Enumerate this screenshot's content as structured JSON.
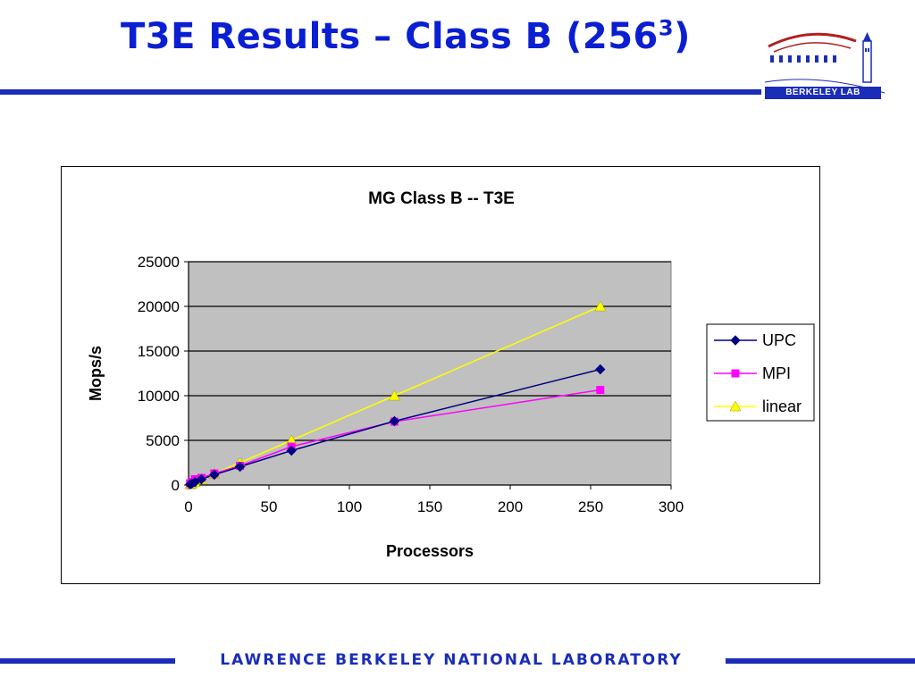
{
  "slide": {
    "title_main": "T3E Results – Class B (256",
    "title_sup": "3",
    "title_close": ")",
    "logo_text": "BERKELEY LAB",
    "footer": "LAWRENCE BERKELEY NATIONAL LABORATORY",
    "colors": {
      "title": "#0a1ed2",
      "rule": "#1a2db8"
    }
  },
  "chart_data": {
    "type": "scatter",
    "title": "MG Class B -- T3E",
    "xlabel": "Processors",
    "ylabel": "Mops/s",
    "xlim": [
      0,
      300
    ],
    "ylim": [
      0,
      25000
    ],
    "xticks": [
      0,
      50,
      100,
      150,
      200,
      250,
      300
    ],
    "yticks": [
      0,
      5000,
      10000,
      15000,
      20000,
      25000
    ],
    "grid": "horizontal",
    "plot_background": "#c0c0c0",
    "legend_position": "right",
    "series": [
      {
        "name": "UPC",
        "color": "#000080",
        "marker": "diamond",
        "points": [
          [
            1,
            80
          ],
          [
            2,
            160
          ],
          [
            4,
            320
          ],
          [
            8,
            640
          ],
          [
            16,
            1150
          ],
          [
            32,
            2050
          ],
          [
            64,
            3850
          ],
          [
            128,
            7150
          ],
          [
            256,
            12950
          ]
        ]
      },
      {
        "name": "MPI",
        "color": "#ff00ff",
        "marker": "square",
        "points": [
          [
            1,
            200
          ],
          [
            2,
            350
          ],
          [
            4,
            650
          ],
          [
            8,
            800
          ],
          [
            16,
            1300
          ],
          [
            32,
            2150
          ],
          [
            64,
            4300
          ],
          [
            128,
            7100
          ],
          [
            256,
            10650
          ]
        ]
      },
      {
        "name": "linear",
        "color": "#ffff00",
        "marker": "triangle",
        "points": [
          [
            1,
            78
          ],
          [
            2,
            156
          ],
          [
            4,
            312
          ],
          [
            8,
            625
          ],
          [
            16,
            1250
          ],
          [
            32,
            2500
          ],
          [
            64,
            5000
          ],
          [
            128,
            10000
          ],
          [
            256,
            20000
          ]
        ]
      }
    ]
  }
}
